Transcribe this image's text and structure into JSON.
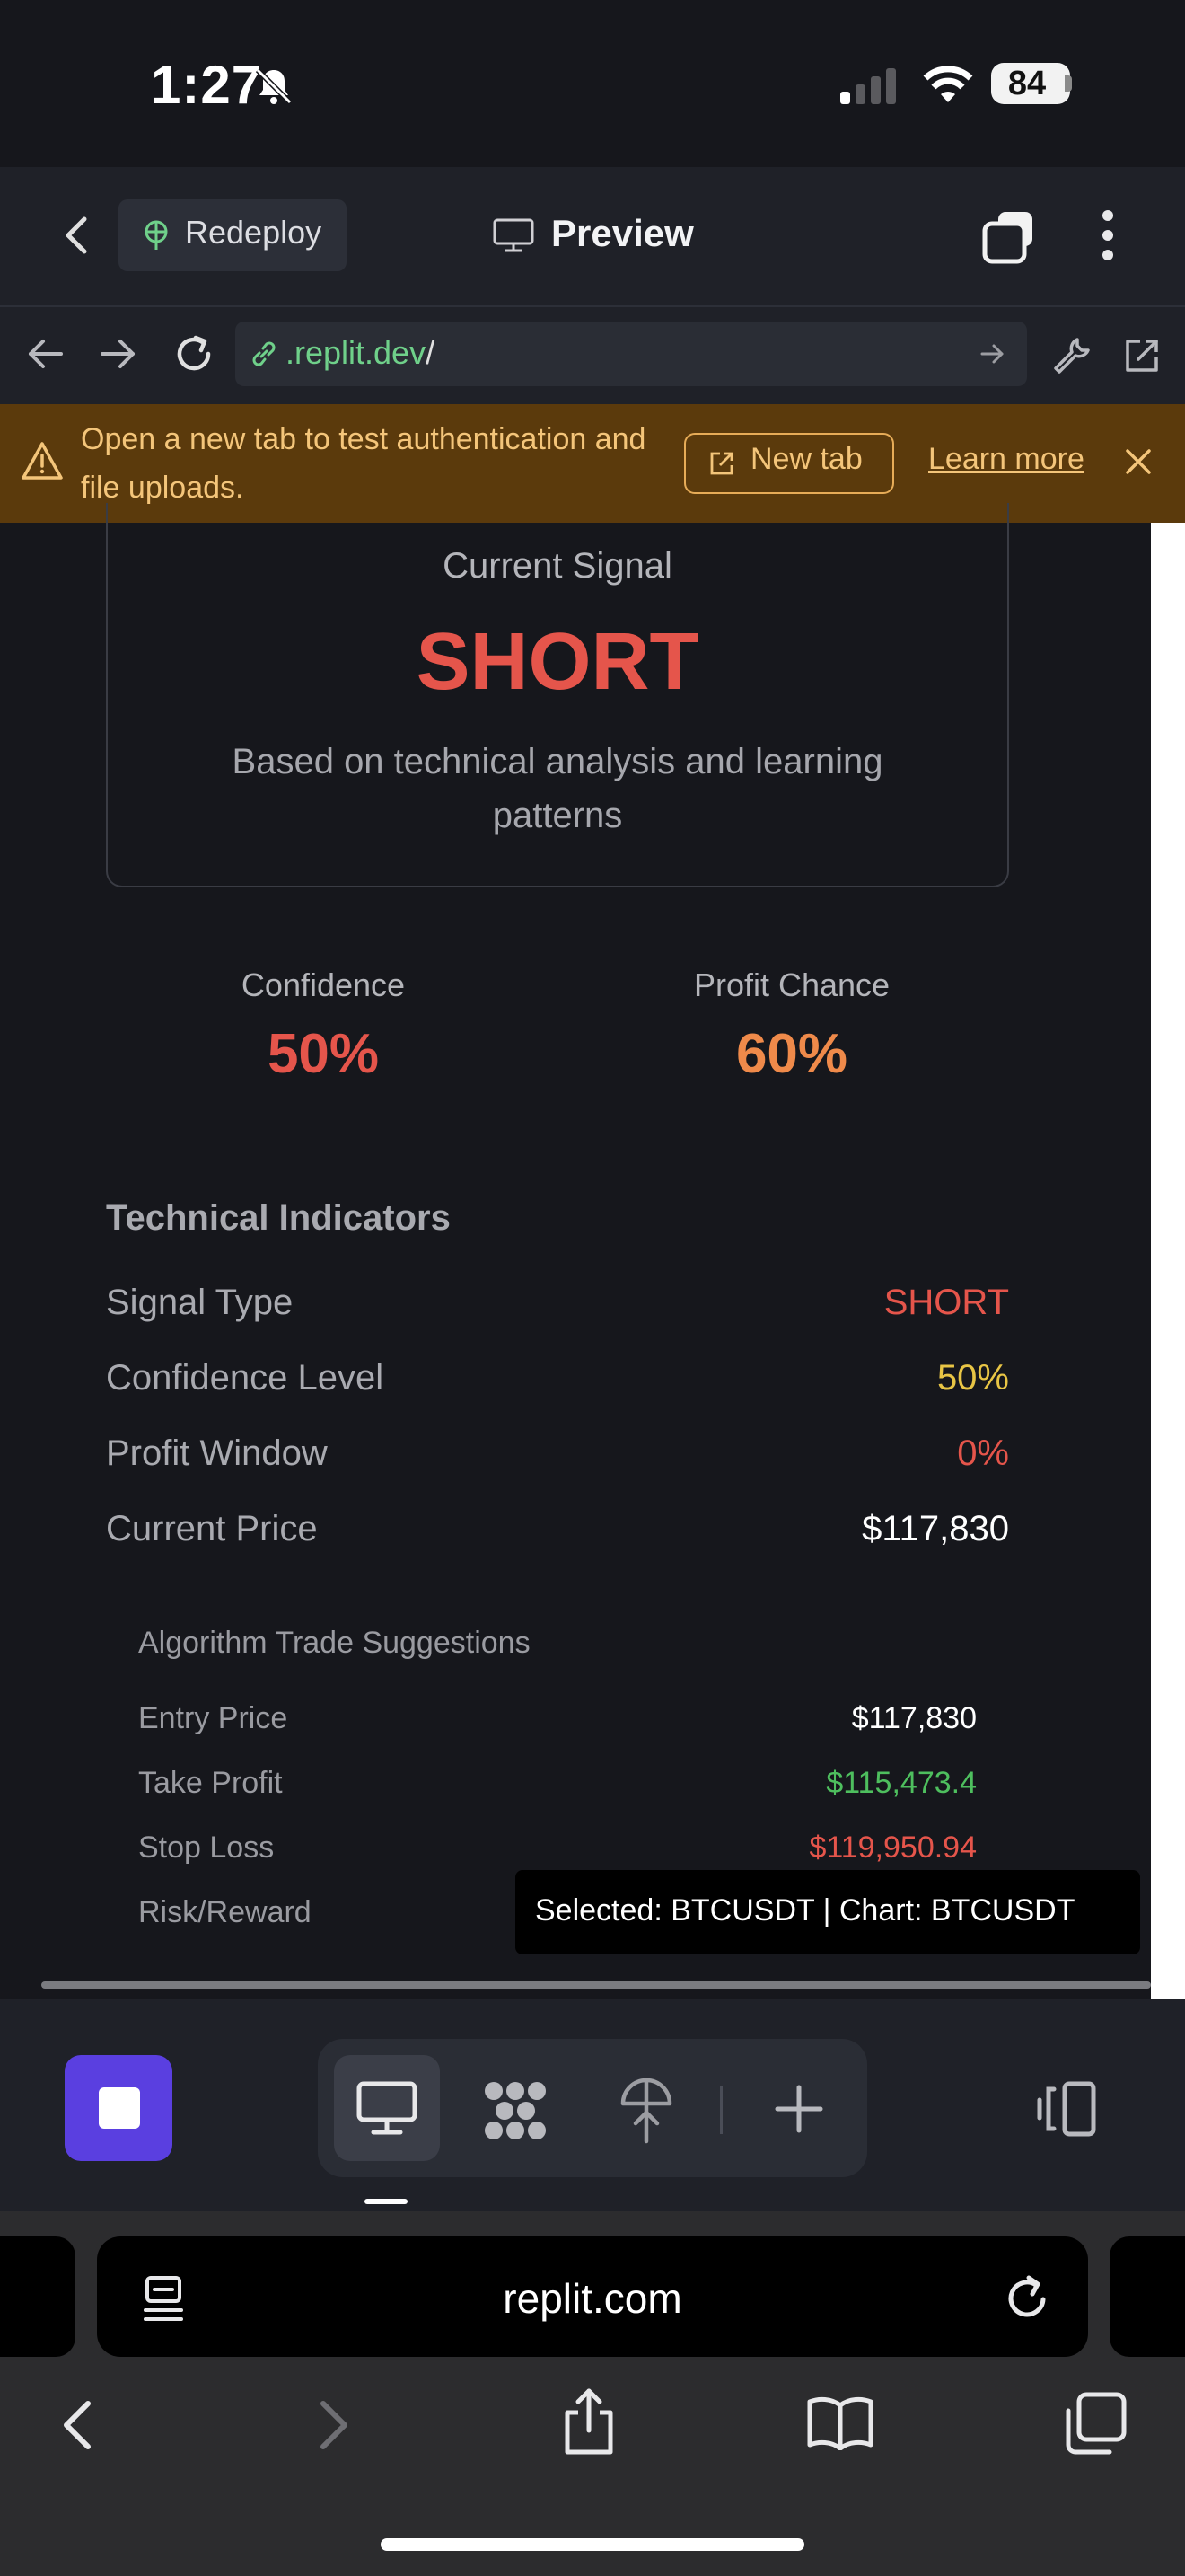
{
  "status_bar": {
    "time": "1:27",
    "battery": "84"
  },
  "app_header": {
    "redeploy_label": "Redeploy",
    "preview_label": "Preview"
  },
  "url_bar": {
    "domain": ".replit.dev",
    "path": "/"
  },
  "banner": {
    "message": "Open a new tab to test authentication and file uploads.",
    "new_tab_label": "New tab",
    "learn_more_label": "Learn more"
  },
  "signal_card": {
    "label": "Current Signal",
    "value": "SHORT",
    "description": "Based on technical analysis and learning patterns"
  },
  "stats": {
    "confidence_label": "Confidence",
    "confidence_value": "50%",
    "profit_label": "Profit Chance",
    "profit_value": "60%"
  },
  "technical_indicators": {
    "heading": "Technical Indicators",
    "rows": [
      {
        "label": "Signal Type",
        "value": "SHORT"
      },
      {
        "label": "Confidence Level",
        "value": "50%"
      },
      {
        "label": "Profit Window",
        "value": "0%"
      },
      {
        "label": "Current Price",
        "value": "$117,830"
      }
    ]
  },
  "algorithm": {
    "heading": "Algorithm Trade Suggestions",
    "rows": [
      {
        "label": "Entry Price",
        "value": "$117,830"
      },
      {
        "label": "Take Profit",
        "value": "$115,473.4"
      },
      {
        "label": "Stop Loss",
        "value": "$119,950.94"
      },
      {
        "label": "Risk/Reward",
        "value": ""
      }
    ]
  },
  "tooltip": {
    "text": "Selected: BTCUSDT | Chart: BTCUSDT"
  },
  "safari": {
    "address": "replit.com"
  },
  "colors": {
    "short_red": "#e5554b",
    "profit_orange": "#ef8a4a",
    "confidence_yellow": "#e8c545",
    "take_profit_green": "#4ebf5e",
    "stop_button_purple": "#5a3fe0",
    "banner_bg": "#5b3a0c"
  }
}
